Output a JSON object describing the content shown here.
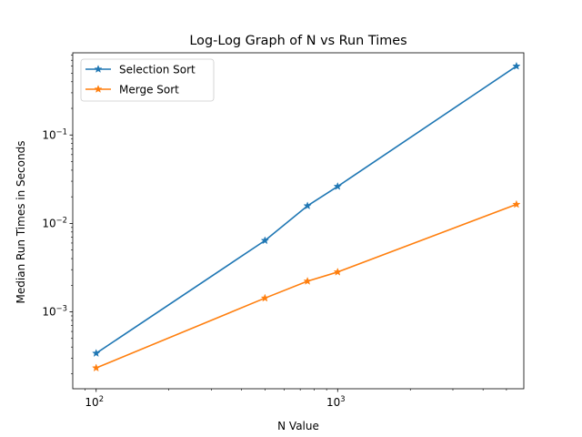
{
  "chart_data": {
    "type": "line",
    "title": "Log-Log Graph of N vs Run Times",
    "xlabel": "N Value",
    "ylabel": "Median Run Times in Seconds",
    "xscale": "log",
    "yscale": "log",
    "xlim": [
      80,
      5900
    ],
    "ylim": [
      0.000135,
      0.85
    ],
    "grid": false,
    "legend": "top-left",
    "marker": "star",
    "x_ticks": [
      {
        "value": 100,
        "base": "10",
        "exp": "2"
      },
      {
        "value": 1000,
        "base": "10",
        "exp": "3"
      }
    ],
    "y_ticks": [
      {
        "value": 0.001,
        "base": "10",
        "exp": "−3"
      },
      {
        "value": 0.01,
        "base": "10",
        "exp": "−2"
      },
      {
        "value": 0.1,
        "base": "10",
        "exp": "−1"
      }
    ],
    "x": [
      100,
      500,
      750,
      1000,
      5500
    ],
    "series": [
      {
        "name": "Selection Sort",
        "color": "#1f77b4",
        "values": [
          0.00034,
          0.0064,
          0.0158,
          0.0262,
          0.6
        ]
      },
      {
        "name": "Merge Sort",
        "color": "#ff7f0e",
        "values": [
          0.000232,
          0.00143,
          0.00222,
          0.00282,
          0.0164
        ]
      }
    ]
  }
}
